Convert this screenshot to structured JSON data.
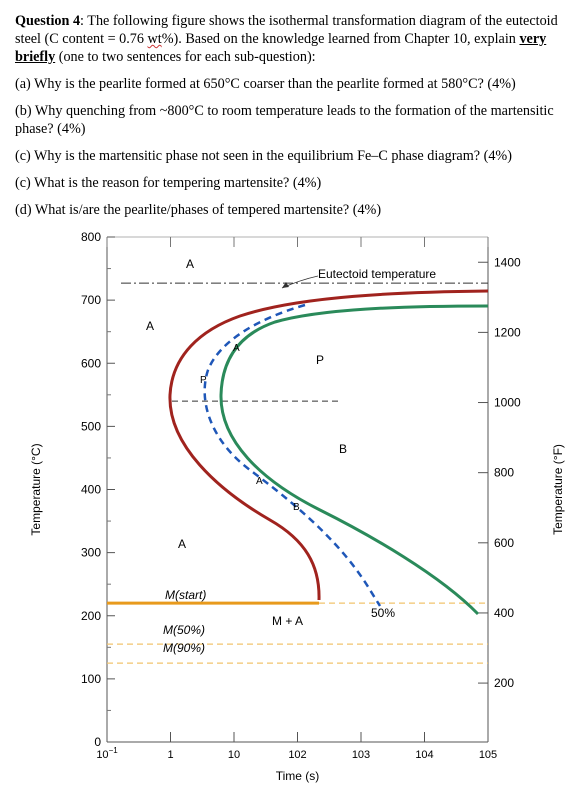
{
  "question": {
    "title_bold": "Question 4",
    "title_line1": ": The following figure shows the isothermal transformation diagram of the eutectoid steel (C content = 0.76 ",
    "title_wt": "wt",
    "title_line2": "%). Based on the knowledge learned from Chapter 10, explain ",
    "title_emph": "very briefly",
    "title_line3": " (one to two sentences for each sub-question):",
    "items": [
      "(a) Why is the pearlite formed at 650°C coarser than the pearlite formed at 580°C? (4%)",
      "(b)  Why quenching from ~800°C to room temperature leads to the formation of the martensitic phase? (4%)",
      "(c) Why is the martensitic phase not seen in the equilibrium Fe–C phase diagram? (4%)",
      "(c) What is the reason for tempering martensite? (4%)",
      "(d) What is/are the pearlite/phases of tempered martensite? (4%)"
    ]
  },
  "chart_data": {
    "type": "line",
    "xlabel": "Time (s)",
    "ylabel_left": "Temperature (°C)",
    "ylabel_right": "Temperature (°F)",
    "x_scale": "log",
    "xlim": [
      0.1,
      100000
    ],
    "x_ticks": [
      "10−1",
      "1",
      "10",
      "102",
      "103",
      "104",
      "105"
    ],
    "ylim": [
      0,
      800
    ],
    "y_ticks_left": [
      "0",
      "100",
      "200",
      "300",
      "400",
      "500",
      "600",
      "700",
      "800"
    ],
    "y_ticks_right": [
      "200",
      "400",
      "600",
      "800",
      "1000",
      "1200",
      "1400"
    ],
    "eutectoid_label": "Eutectoid temperature",
    "eutectoid_temperature_c": 727,
    "labels": {
      "A_top": "A",
      "A_left": "A",
      "A_mid": "A",
      "A_dash": "A",
      "A_lower": "A",
      "P_top": "P",
      "P_dash": "P",
      "B_mid": "B",
      "B_dash": "B",
      "M_A": "M + A",
      "pct50": "50%",
      "M_start": "M(start)",
      "M_50": "M(50%)",
      "M_90": "M(90%)"
    },
    "martensite_lines": [
      {
        "name": "M(start)",
        "temperature_c": 220
      },
      {
        "name": "M(50%)",
        "temperature_c": 155
      },
      {
        "name": "M(90%)",
        "temperature_c": 125
      }
    ],
    "colors": {
      "start_curve": "#a0231e",
      "finish_curve": "#2a8a5a",
      "fifty_curve": "#1f57b8",
      "martensite": "#e89a1c",
      "martensite_dashed": "#f2c46d"
    }
  }
}
